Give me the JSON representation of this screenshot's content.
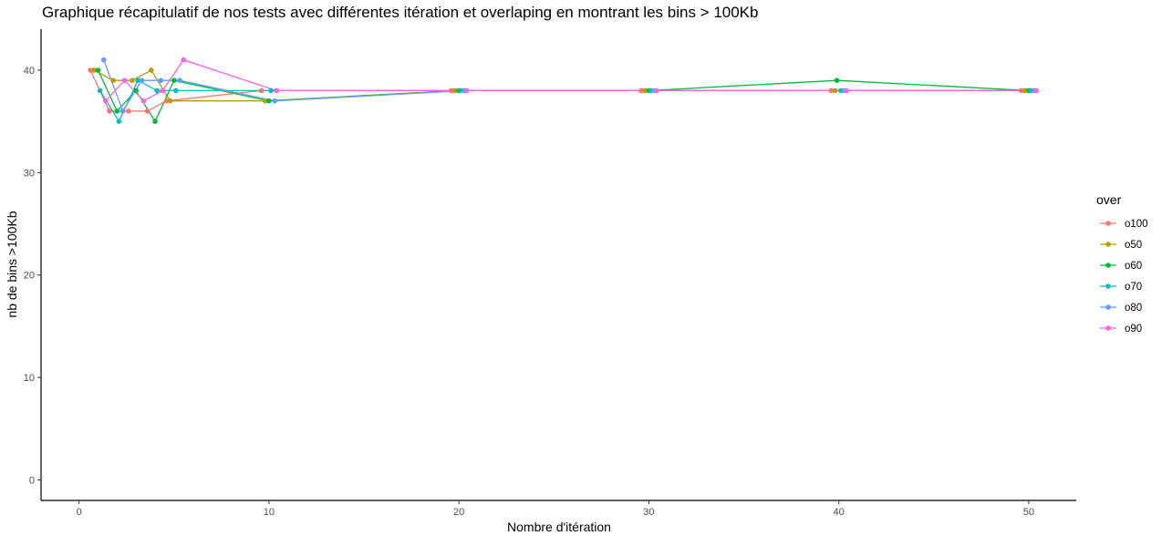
{
  "chart_data": {
    "type": "line",
    "title": "Graphique récapitulatif de nos tests avec différentes itération et overlaping en montrant les bins > 100Kb",
    "xlabel": "Nombre d'itération",
    "ylabel": "nb de bins >100Kb",
    "xlim": [
      -2,
      52.5
    ],
    "ylim": [
      -2,
      44
    ],
    "xticks": [
      0,
      10,
      20,
      30,
      40,
      50
    ],
    "yticks": [
      0,
      10,
      20,
      30,
      40
    ],
    "grid": false,
    "legend": {
      "title": "over",
      "position": "right"
    },
    "series": [
      {
        "name": "o100",
        "color": "#F8766D",
        "x": [
          0.6,
          1.6,
          2.6,
          3.6,
          4.6,
          9.6,
          19.6,
          29.6,
          39.6,
          49.6
        ],
        "y": [
          40,
          36,
          36,
          36,
          37,
          38,
          38,
          38,
          38,
          38
        ]
      },
      {
        "name": "o50",
        "color": "#B79F00",
        "x": [
          0.8,
          1.8,
          2.8,
          3.8,
          4.8,
          9.8,
          19.8,
          29.8,
          39.8,
          49.8
        ],
        "y": [
          40,
          39,
          39,
          40,
          37,
          37,
          38,
          38,
          38,
          38
        ]
      },
      {
        "name": "o60",
        "color": "#00BA38",
        "x": [
          1.0,
          2.0,
          3.0,
          4.0,
          5.0,
          10.0,
          20.0,
          30.0,
          39.9,
          50.0
        ],
        "y": [
          40,
          36,
          38,
          35,
          39,
          37,
          38,
          38,
          39,
          38
        ]
      },
      {
        "name": "o70",
        "color": "#00BFC4",
        "x": [
          1.1,
          2.1,
          3.1,
          4.1,
          5.1,
          10.1,
          20.1,
          30.1,
          40.1,
          50.1
        ],
        "y": [
          38,
          35,
          39,
          38,
          38,
          38,
          38,
          38,
          38,
          38
        ]
      },
      {
        "name": "o80",
        "color": "#619CFF",
        "x": [
          1.3,
          2.3,
          3.3,
          4.3,
          5.3,
          10.3,
          20.3,
          30.3,
          40.3,
          50.3
        ],
        "y": [
          41,
          36,
          39,
          39,
          39,
          37,
          38,
          38,
          38,
          38
        ]
      },
      {
        "name": "o90",
        "color": "#F564E3",
        "x": [
          1.4,
          2.4,
          3.4,
          4.4,
          5.5,
          10.4,
          20.4,
          30.4,
          40.4,
          50.4
        ],
        "y": [
          37,
          39,
          37,
          38,
          41,
          38,
          38,
          38,
          38,
          38
        ]
      }
    ]
  }
}
